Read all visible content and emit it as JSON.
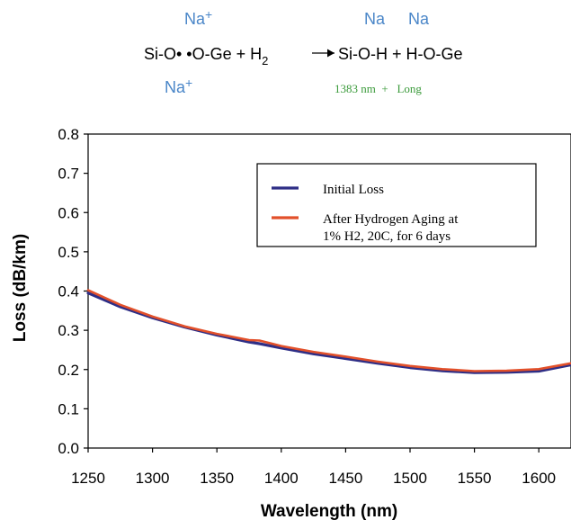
{
  "reaction": {
    "na_top_left": "Na",
    "na_top_left_sup": "+",
    "na_top_mid": "Na",
    "na_top_right": "Na",
    "equation_left": "Si-O• •O-Ge + H",
    "equation_h2_sub": "2",
    "equation_right": "Si-O-H + H-O-Ge",
    "na_bottom_left": "Na",
    "na_bottom_left_sup": "+",
    "absorption_note": "1383 nm  +   Long",
    "na_color": "#4a86c8",
    "note_color": "#3a9a3a"
  },
  "chart_data": {
    "type": "line",
    "title": "",
    "xlabel": "Wavelength (nm)",
    "ylabel": "Loss (dB/km)",
    "xlim": [
      1250,
      1625
    ],
    "ylim": [
      0.0,
      0.8
    ],
    "xticks": [
      1250,
      1300,
      1350,
      1400,
      1450,
      1500,
      1550,
      1600
    ],
    "yticks": [
      "0.0",
      "0.1",
      "0.2",
      "0.3",
      "0.4",
      "0.5",
      "0.6",
      "0.7",
      "0.8"
    ],
    "grid": false,
    "legend_position": "top-right",
    "series": [
      {
        "name": "Initial Loss",
        "color": "#2e2e86",
        "x": [
          1250,
          1275,
          1300,
          1325,
          1350,
          1375,
          1383,
          1400,
          1425,
          1450,
          1475,
          1500,
          1525,
          1550,
          1575,
          1600,
          1625
        ],
        "y": [
          0.395,
          0.36,
          0.332,
          0.308,
          0.288,
          0.27,
          0.266,
          0.255,
          0.24,
          0.228,
          0.216,
          0.205,
          0.197,
          0.192,
          0.193,
          0.196,
          0.212
        ]
      },
      {
        "name": "After Hydrogen Aging at 1% H2, 20C, for 6 days",
        "color": "#e2502a",
        "x": [
          1250,
          1275,
          1300,
          1325,
          1350,
          1375,
          1383,
          1400,
          1425,
          1450,
          1475,
          1500,
          1525,
          1550,
          1575,
          1600,
          1625
        ],
        "y": [
          0.402,
          0.365,
          0.335,
          0.31,
          0.291,
          0.275,
          0.274,
          0.26,
          0.245,
          0.233,
          0.22,
          0.209,
          0.201,
          0.196,
          0.197,
          0.201,
          0.216
        ]
      }
    ],
    "legend_lines": [
      [
        "Initial Loss"
      ],
      [
        "After Hydrogen Aging at",
        "1% H2, 20C, for 6 days"
      ]
    ]
  }
}
